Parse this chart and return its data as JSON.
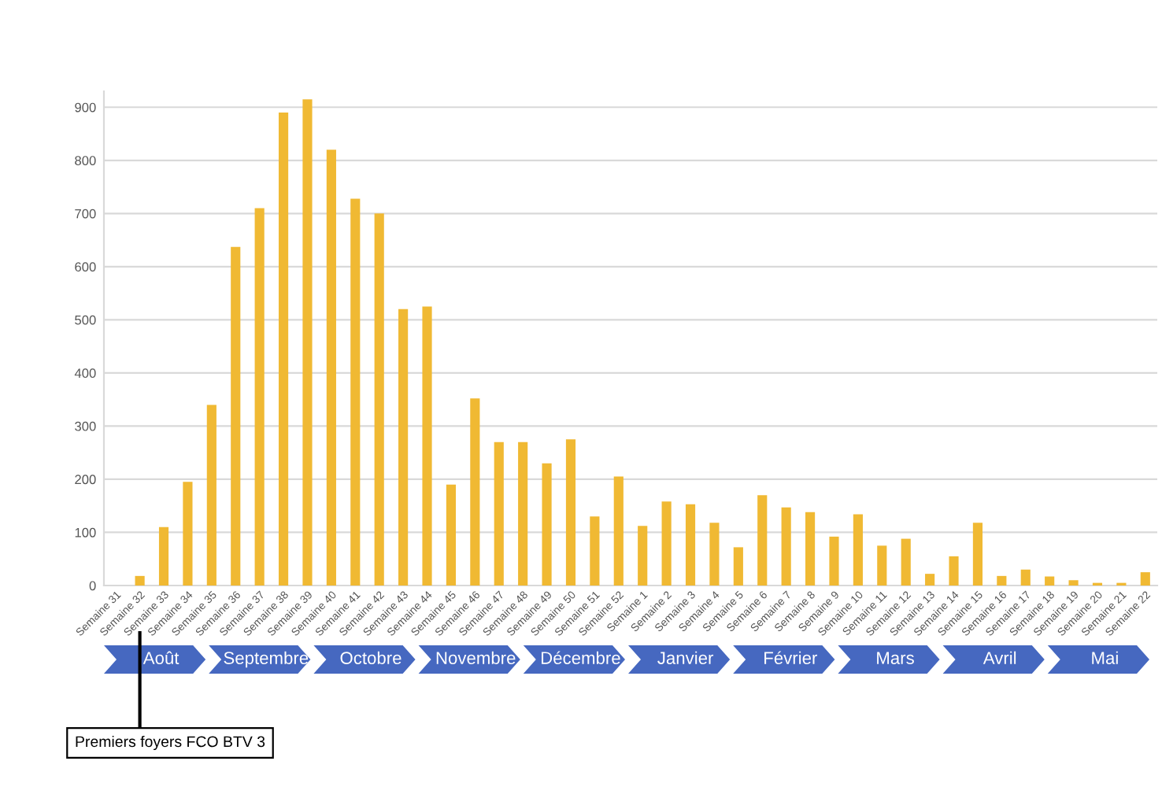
{
  "chart_data": {
    "type": "bar",
    "categories": [
      "Semaine 31",
      "Semaine 32",
      "Semaine 33",
      "Semaine 34",
      "Semaine 35",
      "Semaine 36",
      "Semaine 37",
      "Semaine 38",
      "Semaine 39",
      "Semaine 40",
      "Semaine 41",
      "Semaine 42",
      "Semaine 43",
      "Semaine 44",
      "Semaine 45",
      "Semaine 46",
      "Semaine 47",
      "Semaine 48",
      "Semaine 49",
      "Semaine 50",
      "Semaine 51",
      "Semaine 52",
      "Semaine 1",
      "Semaine 2",
      "Semaine 3",
      "Semaine 4",
      "Semaine 5",
      "Semaine 6",
      "Semaine 7",
      "Semaine 8",
      "Semaine 9",
      "Semaine 10",
      "Semaine 11",
      "Semaine 12",
      "Semaine 13",
      "Semaine 14",
      "Semaine 15",
      "Semaine 16",
      "Semaine 17",
      "Semaine 18",
      "Semaine 19",
      "Semaine 20",
      "Semaine 21",
      "Semaine 22"
    ],
    "values": [
      0,
      18,
      110,
      195,
      340,
      637,
      710,
      890,
      915,
      820,
      728,
      700,
      520,
      525,
      190,
      352,
      270,
      270,
      230,
      275,
      130,
      205,
      112,
      158,
      153,
      118,
      72,
      170,
      147,
      138,
      92,
      134,
      75,
      88,
      22,
      55,
      118,
      18,
      30,
      17,
      10,
      5,
      5,
      25
    ],
    "color": "#f0b933",
    "ylim": [
      0,
      930
    ],
    "yticks": [
      0,
      100,
      200,
      300,
      400,
      500,
      600,
      700,
      800,
      900
    ],
    "grid": "y",
    "annotations": [
      "Août",
      "Septembre",
      "Octobre",
      "Novembre",
      "Décembre",
      "Janvier",
      "Février",
      "Mars",
      "Avril",
      "Mai",
      "Premiers foyers FCO BTV 3"
    ]
  }
}
